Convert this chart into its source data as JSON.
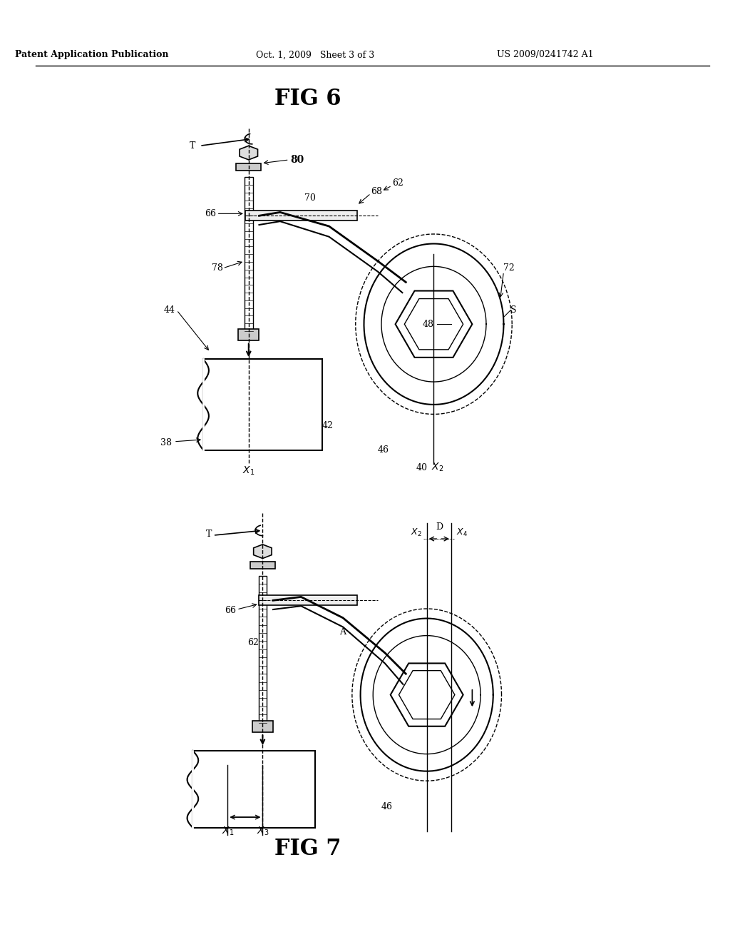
{
  "header_left": "Patent Application Publication",
  "header_mid": "Oct. 1, 2009   Sheet 3 of 3",
  "header_right": "US 2009/0241742 A1",
  "fig6_title": "FIG 6",
  "fig7_title": "FIG 7",
  "bg_color": "#ffffff",
  "line_color": "#000000",
  "gray_color": "#888888",
  "light_gray": "#cccccc"
}
